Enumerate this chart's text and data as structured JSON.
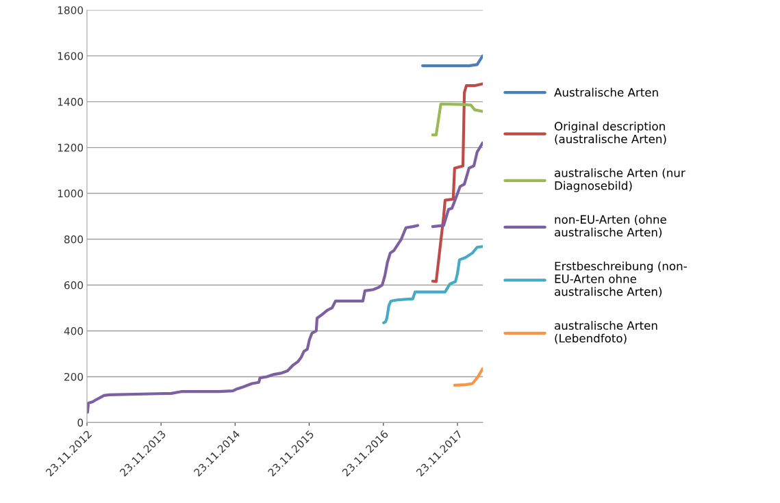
{
  "chart_data": {
    "type": "line",
    "ylim": [
      0,
      1800
    ],
    "yticks": [
      0,
      200,
      400,
      600,
      800,
      1000,
      1200,
      1400,
      1600,
      1800
    ],
    "xlim": [
      "2012-11-23",
      "2018-03-28"
    ],
    "xticks": [
      {
        "value": "2012-11-23",
        "label": "23.11.2012"
      },
      {
        "value": "2013-11-23",
        "label": "23.11.2013"
      },
      {
        "value": "2014-11-23",
        "label": "23.11.2014"
      },
      {
        "value": "2015-11-23",
        "label": "23.11.2015"
      },
      {
        "value": "2016-11-23",
        "label": "23.11.2016"
      },
      {
        "value": "2017-11-23",
        "label": "23.11.2017"
      }
    ],
    "grid": "y",
    "legend": "right",
    "marker": "none",
    "line_style": "solid",
    "series": [
      {
        "name": "Australische Arten",
        "color": "#4a7ebb",
        "x": [
          "2017-06-04",
          "2018-01-19",
          "2018-02-28",
          "2018-03-27"
        ],
        "values": [
          1557,
          1557,
          1562,
          1600
        ]
      },
      {
        "name": "Original description\n(australische Arten)",
        "color": "#be4b48",
        "x": [
          "2017-07-24",
          "2017-08-10",
          "2017-09-16",
          "2017-09-23",
          "2017-11-02",
          "2017-11-09",
          "2017-12-20",
          "2017-12-27",
          "2018-01-06",
          "2018-02-15",
          "2018-03-27"
        ],
        "values": [
          617,
          615,
          900,
          970,
          975,
          1110,
          1120,
          1440,
          1470,
          1470,
          1478
        ]
      },
      {
        "name": "australische Arten (nur\nDiagnosebild)",
        "color": "#98b954",
        "x": [
          "2017-07-24",
          "2017-08-10",
          "2017-09-02",
          "2017-12-20",
          "2018-01-29",
          "2018-02-15",
          "2018-03-27"
        ],
        "values": [
          1255,
          1255,
          1390,
          1388,
          1385,
          1365,
          1358
        ]
      },
      {
        "name": "non-EU-Arten (ohne\naustralische Arten)",
        "color": "#7d60a0",
        "x": [
          "2012-11-26",
          "2012-11-30",
          "2012-12-20",
          "2013-01-06",
          "2013-01-23",
          "2013-02-15",
          "2013-03-14",
          "2013-11-05",
          "2014-01-12",
          "2014-03-03",
          "2014-09-05",
          "2014-11-12",
          "2014-11-28",
          "2015-01-01",
          "2015-02-14",
          "2015-03-20",
          "2015-03-26",
          "2015-04-29",
          "2015-06-02",
          "2015-07-06",
          "2015-08-08",
          "2015-09-04",
          "2015-09-28",
          "2015-10-15",
          "2015-10-28",
          "2015-11-14",
          "2015-11-24",
          "2015-12-07",
          "2015-12-28",
          "2016-01-01",
          "2016-01-24",
          "2016-02-20",
          "2016-03-15",
          "2016-04-01",
          "2016-08-14",
          "2016-08-24",
          "2016-10-04",
          "2016-10-31",
          "2016-11-17",
          "2016-11-30",
          "2016-12-13",
          "2016-12-27",
          "2017-01-13",
          "2017-02-19",
          "2017-03-14",
          "2017-04-17",
          "2017-05-11",
          "2017-06-15",
          "2017-07-24",
          "2017-09-16",
          "2017-10-10",
          "2017-10-27",
          "2017-11-13",
          "2017-12-06",
          "2017-12-27",
          "2018-01-19",
          "2018-02-12",
          "2018-02-28",
          "2018-03-27"
        ],
        "values": [
          45,
          85,
          90,
          99,
          107,
          118,
          121,
          126,
          127,
          135,
          135,
          138,
          145,
          155,
          170,
          175,
          195,
          200,
          210,
          215,
          225,
          250,
          265,
          285,
          310,
          320,
          360,
          390,
          400,
          455,
          470,
          490,
          500,
          530,
          530,
          575,
          580,
          590,
          600,
          640,
          700,
          740,
          750,
          800,
          850,
          855,
          860,
          null,
          855,
          860,
          930,
          935,
          975,
          1030,
          1040,
          1110,
          1120,
          1180,
          1220
        ]
      },
      {
        "name": "Erstbeschreibung (non-\nEU-Arten ohne\naustralische Arten)",
        "color": "#46aac5",
        "x": [
          "2016-11-24",
          "2016-12-04",
          "2016-12-10",
          "2016-12-20",
          "2016-12-30",
          "2017-01-30",
          "2017-04-17",
          "2017-04-28",
          "2017-09-23",
          "2017-10-17",
          "2017-11-13",
          "2017-11-23",
          "2017-12-03",
          "2018-01-02",
          "2018-02-05",
          "2018-02-28",
          "2018-03-27"
        ],
        "values": [
          435,
          440,
          455,
          510,
          530,
          535,
          540,
          570,
          570,
          605,
          615,
          650,
          710,
          720,
          740,
          765,
          768
        ]
      },
      {
        "name": "australische Arten\n(Lebendfoto)",
        "color": "#f79646",
        "x": [
          "2017-11-09",
          "2018-01-02",
          "2018-02-05",
          "2018-03-04",
          "2018-03-27"
        ],
        "values": [
          163,
          165,
          170,
          200,
          235
        ]
      }
    ]
  }
}
